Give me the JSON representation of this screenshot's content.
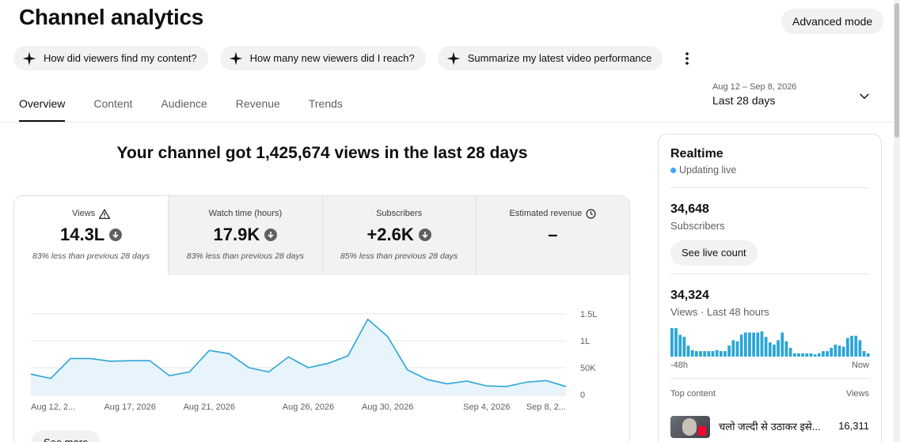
{
  "header": {
    "title": "Channel analytics",
    "advanced_mode_label": "Advanced mode"
  },
  "chips": [
    {
      "label": "How did viewers find my content?",
      "icon": "sparkle-icon"
    },
    {
      "label": "How many new viewers did I reach?",
      "icon": "sparkle-icon"
    },
    {
      "label": "Summarize my latest video performance",
      "icon": "sparkle-icon"
    }
  ],
  "tabs": [
    {
      "label": "Overview",
      "active": true
    },
    {
      "label": "Content",
      "active": false
    },
    {
      "label": "Audience",
      "active": false
    },
    {
      "label": "Revenue",
      "active": false
    },
    {
      "label": "Trends",
      "active": false
    }
  ],
  "date_range": {
    "range": "Aug 12 – Sep 8, 2026",
    "label": "Last 28 days"
  },
  "headline": "Your channel got 1,425,674 views in the last 28 days",
  "metrics": [
    {
      "label": "Views",
      "value": "14.3L",
      "note": "83% less than previous 28 days",
      "icon": "warning-icon"
    },
    {
      "label": "Watch time (hours)",
      "value": "17.9K",
      "note": "83% less than previous 28 days"
    },
    {
      "label": "Subscribers",
      "value": "+2.6K",
      "note": "85% less than previous 28 days"
    },
    {
      "label": "Estimated revenue",
      "value": "–",
      "note": "",
      "icon": "clock-icon"
    }
  ],
  "see_more_label": "See more",
  "chart_data": {
    "type": "area",
    "ylabel": "",
    "xlabel": "",
    "y_ticks": [
      "0",
      "50K",
      "1L",
      "1.5L"
    ],
    "y_tick_values": [
      0,
      50000,
      100000,
      150000
    ],
    "ylim": [
      0,
      150000
    ],
    "x_tick_labels": [
      "Aug 12, 2...",
      "Aug 17, 2026",
      "Aug 21, 2026",
      "Aug 26, 2026",
      "Aug 30, 2026",
      "Sep 4, 2026",
      "Sep 8, 2..."
    ],
    "x_tick_days": [
      0,
      5,
      9,
      14,
      18,
      23,
      27
    ],
    "color": "#2ba5d6",
    "fill": "#e7f4fb",
    "series": [
      {
        "values": [
          38000,
          30000,
          67000,
          67000,
          62000,
          63000,
          63000,
          35000,
          42000,
          82000,
          76000,
          50000,
          42000,
          70000,
          50000,
          58000,
          72000,
          140000,
          108000,
          46000,
          28000,
          20000,
          25000,
          16000,
          15000,
          23000,
          26000,
          15000
        ]
      }
    ]
  },
  "realtime": {
    "title": "Realtime",
    "live_label": "Updating live",
    "subscribers_value": "34,648",
    "subscribers_label": "Subscribers",
    "see_live_label": "See live count",
    "views_value": "34,324",
    "views_label": "Views · Last 48 hours",
    "axis_start": "-48h",
    "axis_end": "Now",
    "bar_color": "#2ba5d6",
    "bars": [
      26,
      26,
      20,
      18,
      10,
      6,
      5,
      5,
      5,
      5,
      5,
      6,
      5,
      5,
      10,
      15,
      14,
      20,
      22,
      22,
      22,
      22,
      23,
      18,
      13,
      11,
      15,
      22,
      14,
      8,
      3,
      3,
      3,
      3,
      3,
      2,
      3,
      5,
      5,
      8,
      11,
      10,
      9,
      17,
      19,
      19,
      15,
      5,
      3
    ],
    "top_content_label": "Top content",
    "views_header": "Views",
    "top_items": [
      {
        "title": "चलो जल्दी से उठाकर इसे...",
        "views": "16,311"
      }
    ]
  }
}
